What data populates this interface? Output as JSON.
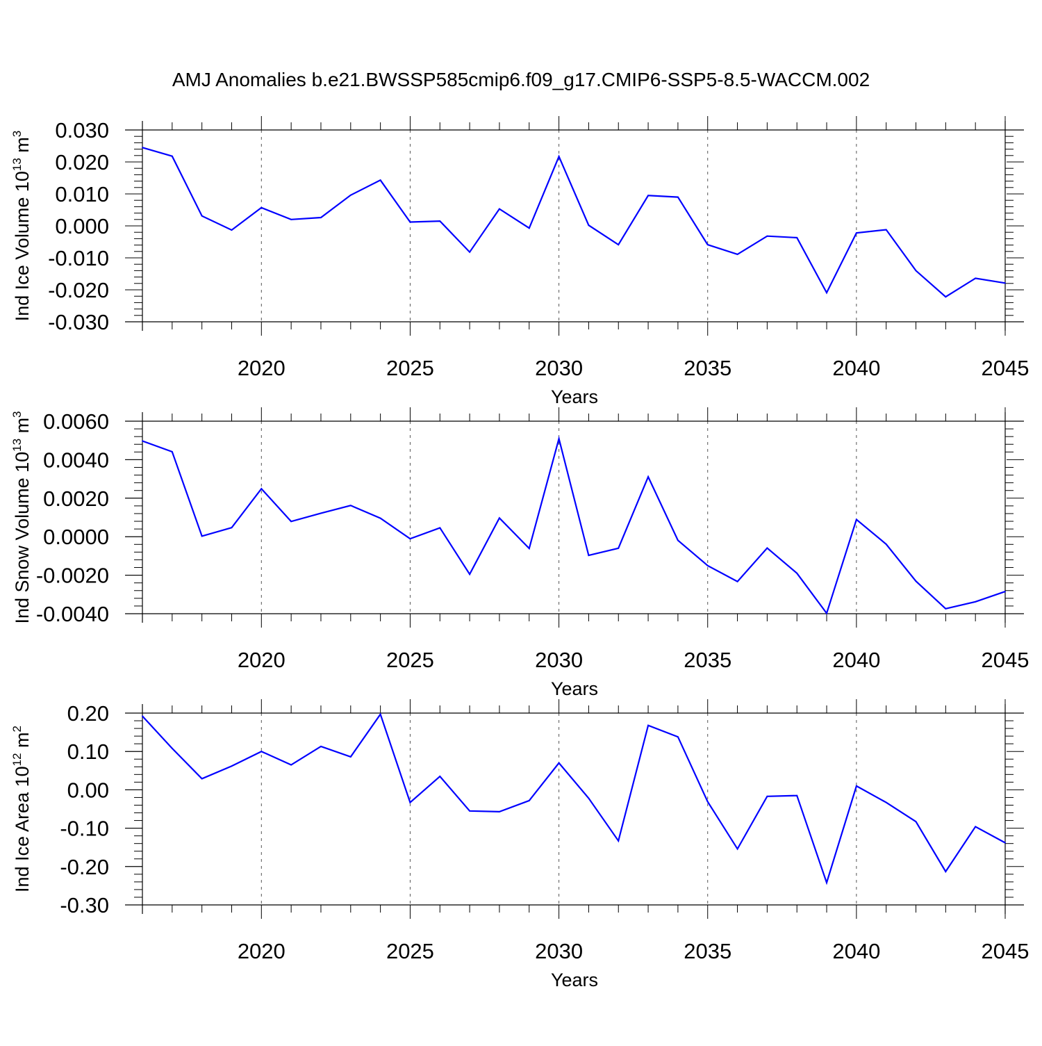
{
  "title": "AMJ Anomalies b.e21.BWSSP585cmip6.f09_g17.CMIP6-SSP5-8.5-WACCM.002",
  "colors": {
    "series": "#0000ff",
    "axis": "#000000"
  },
  "chart_data": [
    {
      "type": "line",
      "ylabel": "Ind Ice Volume 10",
      "ylabel_sup": "13",
      "ylabel_unit": " m",
      "ylabel_unit_sup": "3",
      "xlabel": "Years",
      "xlim": [
        2016,
        2045
      ],
      "ylim": [
        -0.03,
        0.03
      ],
      "yticks": [
        0.03,
        0.02,
        0.01,
        0.0,
        -0.01,
        -0.02,
        -0.03
      ],
      "ytick_labels": [
        "0.030",
        "0.020",
        "0.010",
        "0.000",
        "-0.010",
        "-0.020",
        "-0.030"
      ],
      "xticks": [
        2020,
        2025,
        2030,
        2035,
        2040,
        2045
      ],
      "xtick_labels": [
        "2020",
        "2025",
        "2030",
        "2035",
        "2040",
        "2045"
      ],
      "grid": "dashed vertical at major x ticks",
      "x": [
        2016,
        2017,
        2018,
        2019,
        2020,
        2021,
        2022,
        2023,
        2024,
        2025,
        2026,
        2027,
        2028,
        2029,
        2030,
        2031,
        2032,
        2033,
        2034,
        2035,
        2036,
        2037,
        2038,
        2039,
        2040,
        2041,
        2042,
        2043,
        2044,
        2045
      ],
      "series": [
        {
          "values": [
            0.0245,
            0.0218,
            0.0031,
            -0.0013,
            0.0057,
            0.002,
            0.0026,
            0.0096,
            0.0143,
            0.0012,
            0.0015,
            -0.0082,
            0.0053,
            -0.0007,
            0.0217,
            0.0002,
            -0.0059,
            0.0095,
            0.009,
            -0.0059,
            -0.0089,
            -0.0032,
            -0.0037,
            -0.0209,
            -0.0022,
            -0.0012,
            -0.014,
            -0.0222,
            -0.0164,
            -0.0179
          ]
        }
      ]
    },
    {
      "type": "line",
      "ylabel": "Ind Snow Volume 10",
      "ylabel_sup": "13",
      "ylabel_unit": " m",
      "ylabel_unit_sup": "3",
      "xlabel": "Years",
      "xlim": [
        2016,
        2045
      ],
      "ylim": [
        -0.004,
        0.006
      ],
      "yticks": [
        0.006,
        0.004,
        0.002,
        0.0,
        -0.002,
        -0.004
      ],
      "ytick_labels": [
        "0.0060",
        "0.0040",
        "0.0020",
        "0.0000",
        "-0.0020",
        "-0.0040"
      ],
      "xticks": [
        2020,
        2025,
        2030,
        2035,
        2040,
        2045
      ],
      "xtick_labels": [
        "2020",
        "2025",
        "2030",
        "2035",
        "2040",
        "2045"
      ],
      "grid": "dashed vertical at major x ticks",
      "x": [
        2016,
        2017,
        2018,
        2019,
        2020,
        2021,
        2022,
        2023,
        2024,
        2025,
        2026,
        2027,
        2028,
        2029,
        2030,
        2031,
        2032,
        2033,
        2034,
        2035,
        2036,
        2037,
        2038,
        2039,
        2040,
        2041,
        2042,
        2043,
        2044,
        2045
      ],
      "series": [
        {
          "values": [
            0.00497,
            0.00441,
            3e-05,
            0.00047,
            0.00249,
            0.00079,
            0.00122,
            0.00162,
            0.00096,
            -0.00011,
            0.00046,
            -0.00195,
            0.00097,
            -0.00061,
            0.00509,
            -0.00097,
            -0.0006,
            0.00311,
            -0.00019,
            -0.0015,
            -0.00233,
            -0.00059,
            -0.0019,
            -0.00398,
            0.00089,
            -0.00039,
            -0.00231,
            -0.00374,
            -0.00338,
            -0.00285
          ]
        }
      ]
    },
    {
      "type": "line",
      "ylabel": "Ind Ice Area 10",
      "ylabel_sup": "12",
      "ylabel_unit": " m",
      "ylabel_unit_sup": "2",
      "xlabel": "Years",
      "xlim": [
        2016,
        2045
      ],
      "ylim": [
        -0.3,
        0.2
      ],
      "yticks": [
        0.2,
        0.1,
        0.0,
        -0.1,
        -0.2,
        -0.3
      ],
      "ytick_labels": [
        "0.20",
        "0.10",
        "0.00",
        "-0.10",
        "-0.20",
        "-0.30"
      ],
      "xticks": [
        2020,
        2025,
        2030,
        2035,
        2040,
        2045
      ],
      "xtick_labels": [
        "2020",
        "2025",
        "2030",
        "2035",
        "2040",
        "2045"
      ],
      "grid": "dashed vertical at major x ticks",
      "x": [
        2016,
        2017,
        2018,
        2019,
        2020,
        2021,
        2022,
        2023,
        2024,
        2025,
        2026,
        2027,
        2028,
        2029,
        2030,
        2031,
        2032,
        2033,
        2034,
        2035,
        2036,
        2037,
        2038,
        2039,
        2040,
        2041,
        2042,
        2043,
        2044,
        2045
      ],
      "series": [
        {
          "values": [
            0.192,
            0.108,
            0.029,
            0.062,
            0.1,
            0.065,
            0.113,
            0.086,
            0.197,
            -0.033,
            0.035,
            -0.055,
            -0.057,
            -0.028,
            0.07,
            -0.022,
            -0.133,
            0.168,
            0.138,
            -0.031,
            -0.154,
            -0.017,
            -0.015,
            -0.242,
            0.01,
            -0.033,
            -0.083,
            -0.213,
            -0.096,
            -0.138
          ]
        }
      ]
    }
  ]
}
